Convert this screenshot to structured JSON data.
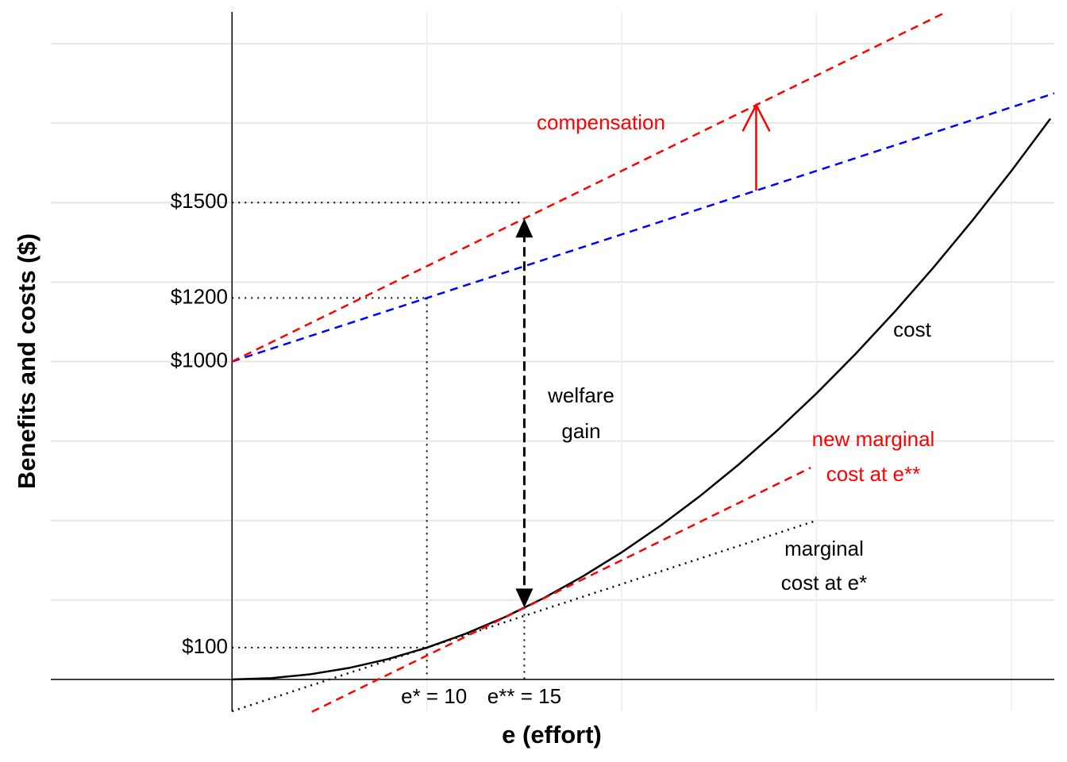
{
  "chart_data": {
    "type": "line",
    "x_label": "e (effort)",
    "y_label": "Benefits and costs ($)",
    "xlim": [
      -9.3,
      42.2
    ],
    "ylim": [
      -100,
      2100
    ],
    "xticks": [
      {
        "value": 10,
        "label": "e* = 10"
      },
      {
        "value": 15,
        "label": "e** = 15"
      }
    ],
    "yticks": [
      {
        "value": 100,
        "label": "$100"
      },
      {
        "value": 1000,
        "label": "$1000"
      },
      {
        "value": 1200,
        "label": "$1200"
      },
      {
        "value": 1500,
        "label": "$1500"
      }
    ],
    "xgrid": [
      10,
      20,
      30,
      40
    ],
    "ygrid": [
      250,
      500,
      750,
      1000,
      1250,
      1500,
      1750,
      2000
    ],
    "series": [
      {
        "color": "#000000",
        "dash": "solid",
        "x": [
          0,
          2,
          4,
          6,
          8,
          10,
          12,
          14,
          16,
          18,
          20,
          22,
          24,
          26,
          28,
          30,
          32,
          34,
          36,
          38,
          40,
          42
        ],
        "values": [
          0,
          4,
          16,
          36,
          64,
          100,
          144,
          196,
          256,
          324,
          400,
          484,
          576,
          676,
          784,
          900,
          1024,
          1156,
          1296,
          1444,
          1600,
          1764
        ]
      },
      {
        "color": "#0000ff",
        "dash": "dashed",
        "x": [
          0,
          42.2
        ],
        "values": [
          1000,
          1844
        ]
      },
      {
        "color": "#ff0000",
        "dash": "dashed",
        "x": [
          0,
          36.6
        ],
        "values": [
          1000,
          2098
        ]
      },
      {
        "color": "#000000",
        "dash": "dotted",
        "x": [
          0,
          30
        ],
        "values": [
          -100,
          500
        ]
      },
      {
        "color": "#ff0000",
        "dash": "dashed",
        "x": [
          4.1,
          29.7
        ],
        "values": [
          -102,
          666
        ]
      }
    ],
    "annotations": [
      {
        "text": "compensation",
        "color": "#ff0000"
      },
      {
        "text": "welfare",
        "color": "#000000"
      },
      {
        "text": "gain",
        "color": "#000000"
      },
      {
        "text": "cost",
        "color": "#000000"
      },
      {
        "text": "new marginal",
        "color": "#ff0000"
      },
      {
        "text": "cost at e**",
        "color": "#ff0000"
      },
      {
        "text": "marginal",
        "color": "#000000"
      },
      {
        "text": "cost at e*",
        "color": "#000000"
      }
    ]
  }
}
